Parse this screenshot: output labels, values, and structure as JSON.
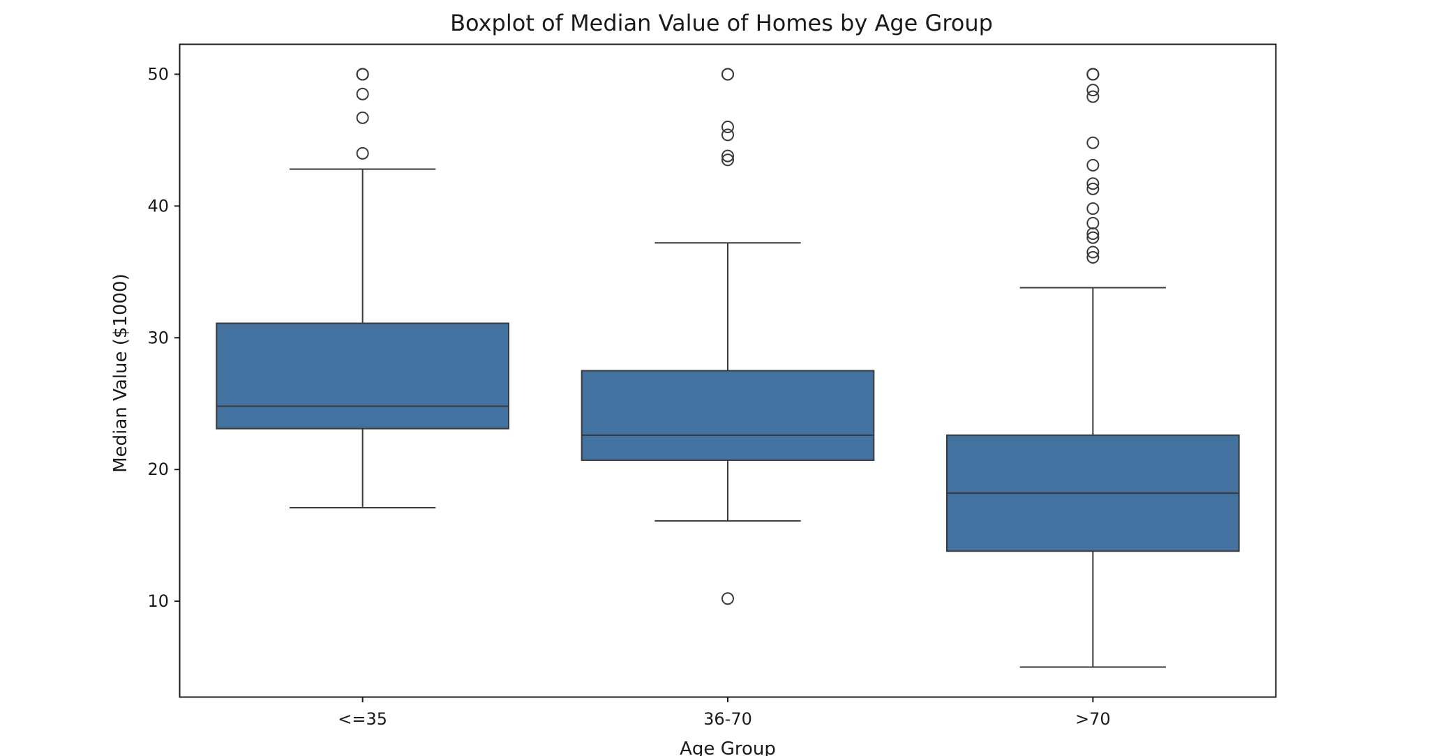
{
  "chart_data": {
    "type": "boxplot",
    "title": "Boxplot of Median Value of Homes by Age Group",
    "xlabel": "Age Group",
    "ylabel": "Median Value ($1000)",
    "ylim": [
      2.75,
      52.25
    ],
    "yticks": [
      10,
      20,
      30,
      40,
      50
    ],
    "grid": false,
    "categories": [
      "<=35",
      "36-70",
      ">70"
    ],
    "boxes": [
      {
        "category": "<=35",
        "whisker_low": 17.1,
        "q1": 23.1,
        "median": 24.8,
        "q3": 31.1,
        "whisker_high": 42.8,
        "outliers": [
          44.0,
          46.7,
          48.5,
          50.0,
          50.0,
          50.0
        ]
      },
      {
        "category": "36-70",
        "whisker_low": 16.1,
        "q1": 20.7,
        "median": 22.6,
        "q3": 27.5,
        "whisker_high": 37.2,
        "outliers": [
          10.2,
          43.5,
          43.8,
          45.4,
          46.0,
          50.0,
          50.0
        ]
      },
      {
        "category": ">70",
        "whisker_low": 5.0,
        "q1": 13.8,
        "median": 18.2,
        "q3": 22.6,
        "whisker_high": 33.8,
        "outliers": [
          36.1,
          36.5,
          37.6,
          37.9,
          38.7,
          39.8,
          41.3,
          41.7,
          43.1,
          44.8,
          48.3,
          48.8,
          50.0,
          50.0,
          50.0,
          50.0
        ]
      }
    ],
    "colors": {
      "box_fill": "#4472a0",
      "line": "#3a3a3a",
      "frame": "#1a1a1a",
      "text": "#1a1a1a"
    }
  }
}
